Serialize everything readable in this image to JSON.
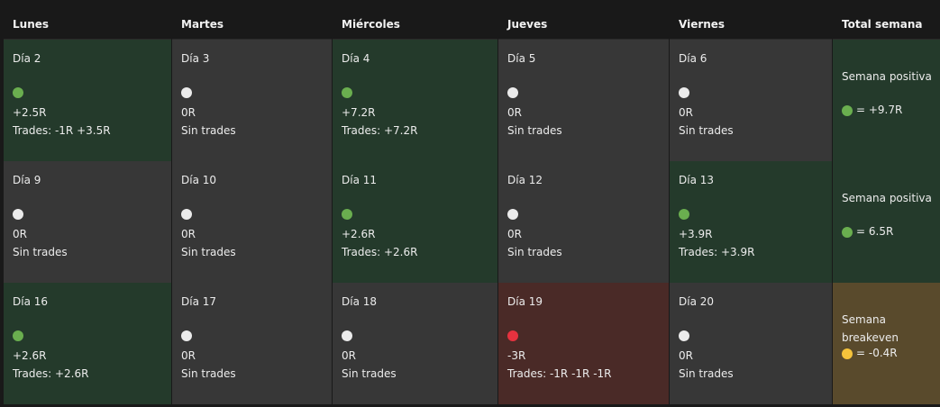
{
  "headers": [
    "Lunes",
    "Martes",
    "Miércoles",
    "Jueves",
    "Viernes",
    "Total semana"
  ],
  "weeks": [
    {
      "days": [
        {
          "label": "Día 2",
          "status": "green",
          "r": "+2.5R",
          "trades": "Trades: -1R +3.5R"
        },
        {
          "label": "Día 3",
          "status": "white",
          "r": "0R",
          "trades": "Sin trades"
        },
        {
          "label": "Día 4",
          "status": "green",
          "r": "+7.2R",
          "trades": "Trades: +7.2R"
        },
        {
          "label": "Día 5",
          "status": "white",
          "r": "0R",
          "trades": "Sin trades"
        },
        {
          "label": "Día 6",
          "status": "white",
          "r": "0R",
          "trades": "Sin trades"
        }
      ],
      "total": {
        "title": "Semana positiva",
        "status": "green",
        "value": "= +9.7R"
      }
    },
    {
      "days": [
        {
          "label": "Día 9",
          "status": "white",
          "r": "0R",
          "trades": "Sin trades"
        },
        {
          "label": "Día 10",
          "status": "white",
          "r": "0R",
          "trades": "Sin trades"
        },
        {
          "label": "Día 11",
          "status": "green",
          "r": "+2.6R",
          "trades": "Trades: +2.6R"
        },
        {
          "label": "Día 12",
          "status": "white",
          "r": "0R",
          "trades": "Sin trades"
        },
        {
          "label": "Día 13",
          "status": "green",
          "r": "+3.9R",
          "trades": "Trades: +3.9R"
        }
      ],
      "total": {
        "title": "Semana positiva",
        "status": "green",
        "value": "= 6.5R"
      }
    },
    {
      "days": [
        {
          "label": "Día 16",
          "status": "green",
          "r": "+2.6R",
          "trades": "Trades: +2.6R"
        },
        {
          "label": "Día 17",
          "status": "white",
          "r": "0R",
          "trades": "Sin trades"
        },
        {
          "label": "Día 18",
          "status": "white",
          "r": "0R",
          "trades": "Sin trades"
        },
        {
          "label": "Día 19",
          "status": "red",
          "r": "-3R",
          "trades": "Trades: -1R -1R -1R"
        },
        {
          "label": "Día 20",
          "status": "white",
          "r": "0R",
          "trades": "Sin trades"
        }
      ],
      "total": {
        "title": "Semana breakeven",
        "status": "yellow",
        "value": "= -0.4R"
      }
    }
  ],
  "colors": {
    "green_bg": "#243a2b",
    "gray_bg": "#373737",
    "red_bg": "#4a2a27",
    "yellow_bg": "#594a2c",
    "green_dot": "#6aae4f",
    "white_dot": "#ebebeb",
    "red_dot": "#e5323f",
    "yellow_dot": "#f5c33b"
  }
}
